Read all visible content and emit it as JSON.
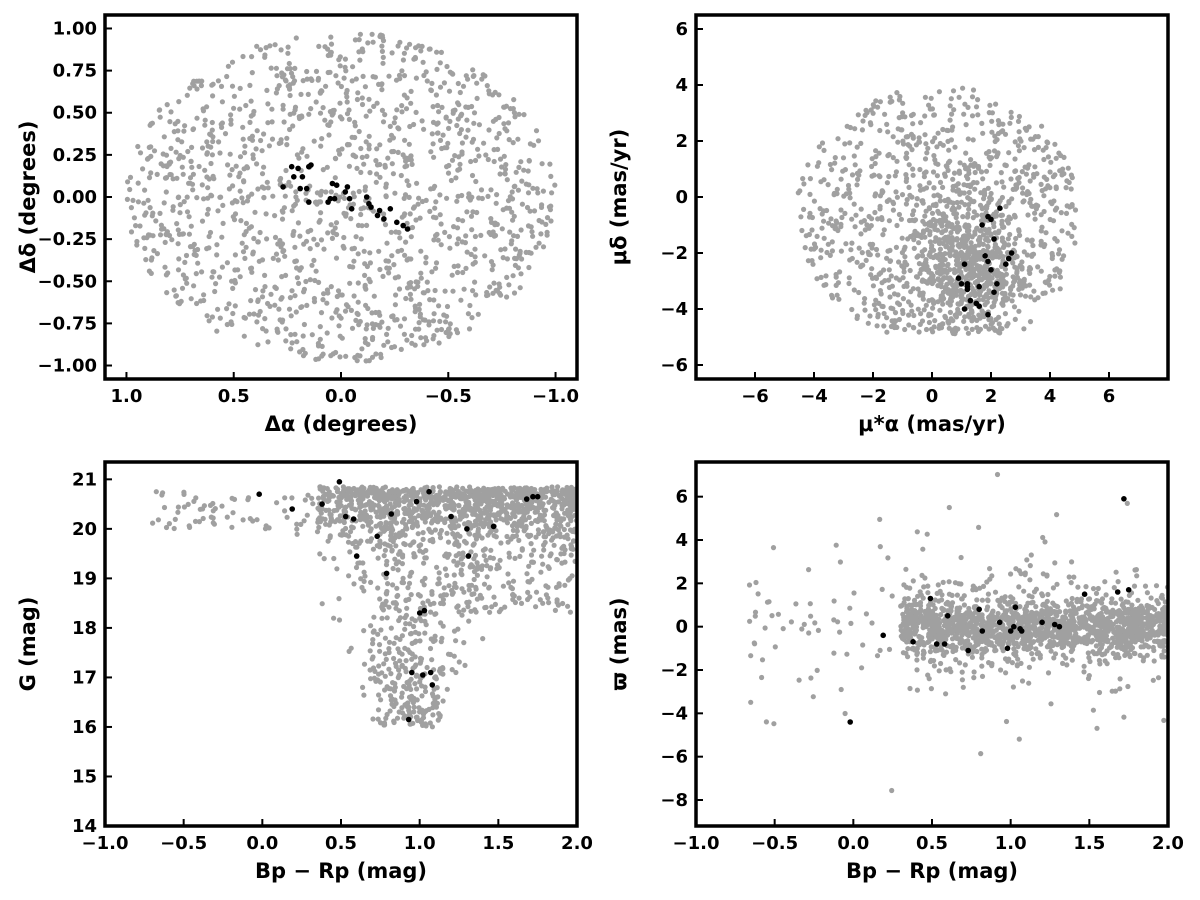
{
  "figure": {
    "colors": {
      "field_stars": "#a0a0a0",
      "members": "#000000",
      "frame": "#000000"
    }
  },
  "chart_data": [
    {
      "id": "sky",
      "type": "scatter",
      "title": "",
      "xlabel": "Δα (degrees)",
      "ylabel": "Δδ (degrees)",
      "xlim": [
        1.1,
        -1.1
      ],
      "ylim": [
        -1.08,
        1.08
      ],
      "xticks": [
        1.0,
        0.5,
        0.0,
        -0.5,
        -1.0
      ],
      "xtick_labels": [
        "1.0",
        "0.5",
        "0.0",
        "−0.5",
        "−1.0"
      ],
      "yticks": [
        1.0,
        0.75,
        0.5,
        0.25,
        0.0,
        -0.25,
        -0.5,
        -0.75,
        -1.0
      ],
      "ytick_labels": [
        "1.00",
        "0.75",
        "0.50",
        "0.25",
        "0.00",
        "−0.25",
        "−0.50",
        "−0.75",
        "−1.00"
      ],
      "grid": false,
      "field_stars": {
        "n": 1400,
        "shape": "disk",
        "cx": 0.0,
        "cy": 0.0,
        "rx": 1.0,
        "ry": 0.98,
        "seed": 11
      },
      "members": {
        "x": [
          0.23,
          0.22,
          0.2,
          0.18,
          0.16,
          0.15,
          0.14,
          0.27,
          0.15,
          0.06,
          0.05,
          0.03,
          0.02,
          -0.03,
          -0.04,
          -0.05,
          -0.12,
          -0.13,
          -0.14,
          -0.18,
          -0.17,
          -0.2,
          -0.23,
          -0.26,
          -0.29,
          -0.31,
          -0.02,
          0.04,
          0.19
        ],
        "y": [
          0.18,
          0.12,
          0.17,
          0.12,
          0.05,
          0.18,
          0.19,
          0.06,
          -0.03,
          -0.03,
          -0.01,
          -0.01,
          0.07,
          0.06,
          -0.01,
          -0.07,
          0.0,
          -0.04,
          -0.06,
          -0.08,
          -0.11,
          -0.13,
          -0.07,
          -0.15,
          -0.17,
          -0.19,
          0.03,
          0.08,
          0.05
        ]
      }
    },
    {
      "id": "proper-motion",
      "type": "scatter",
      "title": "",
      "xlabel": "μ*α (mas/yr)",
      "ylabel": "μδ (mas/yr)",
      "xlim": [
        -8.0,
        8.0
      ],
      "ylim": [
        -6.5,
        6.5
      ],
      "xticks": [
        -6,
        -4,
        -2,
        0,
        2,
        4,
        6
      ],
      "xtick_labels": [
        "−6",
        "−4",
        "−2",
        "0",
        "2",
        "4",
        "6"
      ],
      "yticks": [
        6,
        4,
        2,
        0,
        -2,
        -4,
        -6
      ],
      "ytick_labels": [
        "6",
        "4",
        "2",
        "0",
        "−2",
        "−4",
        "−6"
      ],
      "grid": false,
      "field_stars": {
        "n": 1500,
        "shape": "disk-clipped",
        "cx": 0.2,
        "cy": -0.6,
        "rx": 4.8,
        "ry": 4.6,
        "clip_y": -4.9,
        "core_cx": 1.3,
        "core_cy": -2.5,
        "core_rx": 1.6,
        "core_ry": 1.9,
        "core_frac": 0.35,
        "seed": 23
      },
      "members": {
        "x": [
          1.1,
          1.2,
          1.5,
          1.6,
          1.6,
          1.8,
          1.9,
          1.9,
          2.0,
          2.1,
          2.1,
          2.3,
          2.5,
          2.7,
          1.2,
          1.3,
          1.7,
          0.9,
          1.0,
          1.1,
          1.2,
          1.9,
          2.0,
          2.2,
          2.6
        ],
        "y": [
          -2.4,
          -3.2,
          -3.8,
          -3.9,
          -3.2,
          -2.1,
          -0.7,
          -2.3,
          -0.8,
          -1.5,
          -3.4,
          -0.4,
          -2.4,
          -2.0,
          -3.1,
          -3.7,
          -1.0,
          -2.9,
          -3.1,
          -4.0,
          -3.3,
          -4.2,
          -2.6,
          -3.1,
          -2.2
        ]
      }
    },
    {
      "id": "cmd",
      "type": "scatter",
      "title": "",
      "xlabel": "Bp − Rp (mag)",
      "ylabel": "G (mag)",
      "xlim": [
        -1.0,
        2.0
      ],
      "ylim": [
        14.0,
        21.35
      ],
      "y_inverted": false,
      "xticks": [
        -1.0,
        -0.5,
        0.0,
        0.5,
        1.0,
        1.5,
        2.0
      ],
      "xtick_labels": [
        "−1.0",
        "−0.5",
        "0.0",
        "0.5",
        "1.0",
        "1.5",
        "2.0"
      ],
      "yticks": [
        21,
        20,
        19,
        18,
        17,
        16,
        15,
        14
      ],
      "ytick_labels": [
        "21",
        "20",
        "19",
        "18",
        "17",
        "16",
        "15",
        "14"
      ],
      "grid": false,
      "field_stars": {
        "n": 1700,
        "shape": "cmd-wedge",
        "seed": 37
      },
      "members": {
        "x": [
          -0.02,
          0.19,
          0.38,
          0.49,
          0.53,
          0.58,
          0.6,
          0.73,
          0.79,
          0.82,
          0.98,
          1.03,
          1.06,
          1.2,
          1.3,
          1.31,
          1.47,
          1.68,
          1.72,
          1.75,
          0.95,
          1.0,
          1.02,
          1.07,
          1.08,
          0.93
        ],
        "y": [
          20.7,
          20.4,
          20.5,
          20.95,
          20.25,
          20.2,
          19.45,
          19.85,
          19.1,
          20.3,
          20.55,
          18.35,
          20.75,
          20.25,
          20.0,
          19.45,
          20.05,
          20.6,
          20.65,
          20.65,
          17.1,
          18.3,
          17.05,
          17.1,
          16.85,
          16.15
        ]
      }
    },
    {
      "id": "parallax",
      "type": "scatter",
      "title": "",
      "xlabel": "Bp − Rp (mag)",
      "ylabel": "ϖ (mas)",
      "xlim": [
        -1.0,
        2.0
      ],
      "ylim": [
        -9.2,
        7.6
      ],
      "xticks": [
        -1.0,
        -0.5,
        0.0,
        0.5,
        1.0,
        1.5,
        2.0
      ],
      "xtick_labels": [
        "−1.0",
        "−0.5",
        "0.0",
        "0.5",
        "1.0",
        "1.5",
        "2.0"
      ],
      "yticks": [
        6,
        4,
        2,
        0,
        -2,
        -4,
        -6,
        -8
      ],
      "ytick_labels": [
        "6",
        "4",
        "2",
        "0",
        "−2",
        "−4",
        "−6",
        "−8"
      ],
      "grid": false,
      "field_stars": {
        "n": 1700,
        "shape": "band",
        "seed": 53
      },
      "members": {
        "x": [
          -0.02,
          0.19,
          0.38,
          0.49,
          0.53,
          0.58,
          0.6,
          0.73,
          0.8,
          0.82,
          0.93,
          0.98,
          1.0,
          1.02,
          1.03,
          1.06,
          1.07,
          1.2,
          1.28,
          1.31,
          1.47,
          1.68,
          1.72,
          1.75
        ],
        "y": [
          -4.4,
          -0.4,
          -0.7,
          1.3,
          -0.8,
          -0.8,
          0.5,
          -1.1,
          0.8,
          -0.2,
          0.2,
          -1.0,
          -0.2,
          0.0,
          0.9,
          -0.1,
          -0.2,
          0.2,
          0.1,
          0.0,
          1.5,
          1.6,
          5.9,
          1.7
        ]
      }
    }
  ]
}
